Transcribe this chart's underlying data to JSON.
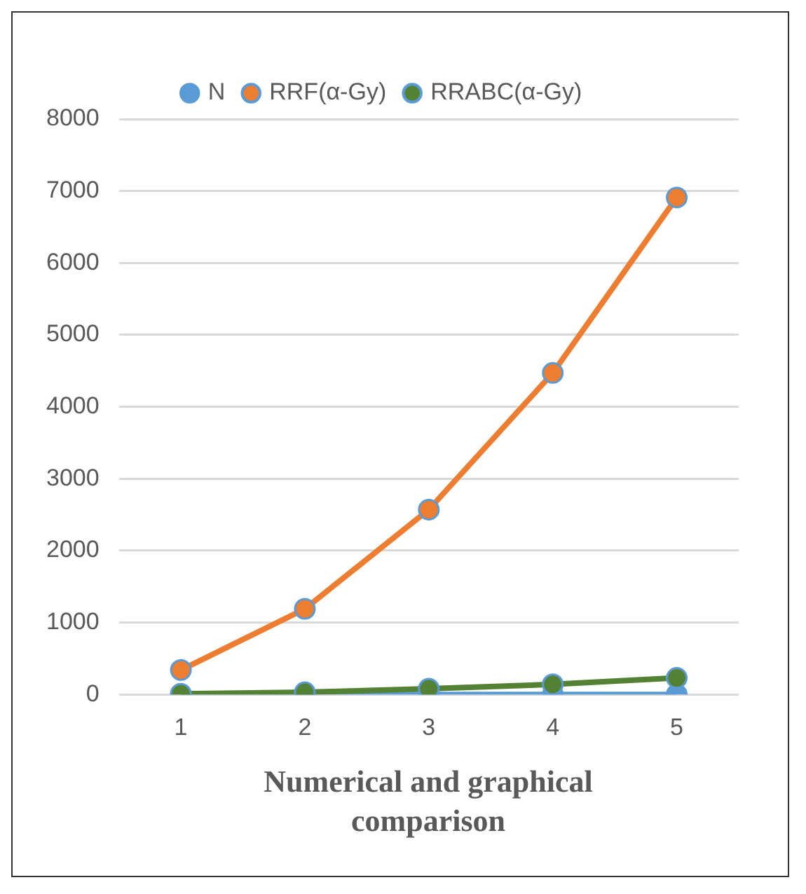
{
  "chart_data": {
    "type": "line",
    "xlabel": "Numerical and graphical comparison",
    "categories": [
      "1",
      "2",
      "3",
      "4",
      "5"
    ],
    "series": [
      {
        "name": "N",
        "color": "#5b9bd5",
        "values": [
          0,
          0,
          0,
          0,
          0
        ]
      },
      {
        "name": "RRF(α-Gy)",
        "color": "#ed7d31",
        "values": [
          340,
          1190,
          2570,
          4470,
          6910
        ]
      },
      {
        "name": "RRABC(α-Gy)",
        "color": "#548235",
        "values": [
          10,
          30,
          80,
          140,
          230
        ]
      }
    ],
    "ylim": [
      0,
      8000
    ],
    "yticks": [
      0,
      1000,
      2000,
      3000,
      4000,
      5000,
      6000,
      7000,
      8000
    ],
    "grid": "y",
    "legend": "top",
    "marker": "circle",
    "line_style": "solid"
  }
}
